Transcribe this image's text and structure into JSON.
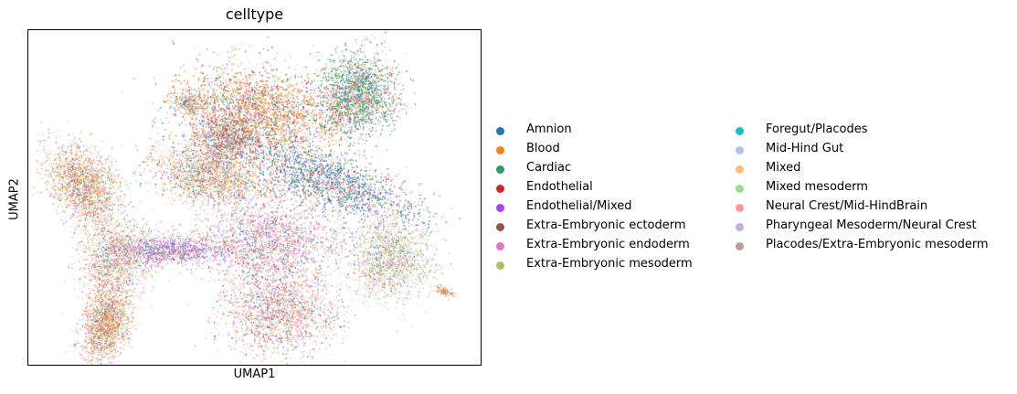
{
  "chart_data": {
    "type": "scatter",
    "title": "celltype",
    "xlabel": "UMAP1",
    "ylabel": "UMAP2",
    "grid": false,
    "xticks": [],
    "yticks": [],
    "legend_placement": "right",
    "series": [
      {
        "name": "Amnion",
        "color": "#1f77b4"
      },
      {
        "name": "Blood",
        "color": "#ff7f0e"
      },
      {
        "name": "Cardiac",
        "color": "#279e68"
      },
      {
        "name": "Endothelial",
        "color": "#d62728"
      },
      {
        "name": "Endothelial/Mixed",
        "color": "#aa40fc"
      },
      {
        "name": "Extra-Embryonic ectoderm",
        "color": "#8c564b"
      },
      {
        "name": "Extra-Embryonic endoderm",
        "color": "#e377c2"
      },
      {
        "name": "Extra-Embryonic mesoderm",
        "color": "#b5bd61"
      },
      {
        "name": "Foregut/Placodes",
        "color": "#17becf"
      },
      {
        "name": "Mid-Hind Gut",
        "color": "#aec7e8"
      },
      {
        "name": "Mixed",
        "color": "#ffbb78"
      },
      {
        "name": "Mixed mesoderm",
        "color": "#98df8a"
      },
      {
        "name": "Neural Crest/Mid-HindBrain",
        "color": "#ff9896"
      },
      {
        "name": "Pharyngeal Mesoderm/Neural Crest",
        "color": "#c5b0d5"
      },
      {
        "name": "Placodes/Extra-Embryonic mesoderm",
        "color": "#c49c94"
      }
    ]
  }
}
